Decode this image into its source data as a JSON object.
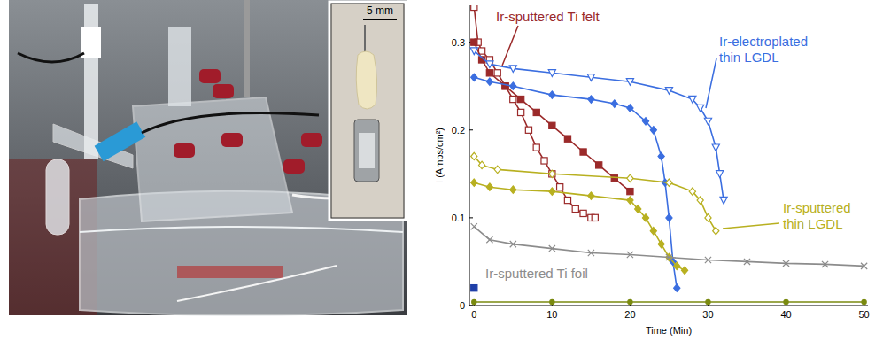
{
  "chart_data": {
    "type": "scatter",
    "x_label": "Time (Min)",
    "y_label": "I (Amps/cm²)",
    "xlim": [
      -0.6,
      50.5
    ],
    "ylim": [
      0,
      0.342
    ],
    "xticks": [
      0,
      10,
      20,
      30,
      40,
      50
    ],
    "yticks": [
      0,
      0.1,
      0.2,
      0.3
    ],
    "grid": false,
    "series": [
      {
        "name": "Ir-sputtered Ti felt",
        "color": "#9b2a2a",
        "marker": "square-open",
        "line_style": "solid",
        "x": [
          0,
          0.5,
          1,
          2,
          3,
          4,
          5,
          6,
          7,
          8,
          9,
          10,
          11,
          12,
          13,
          14,
          15,
          15.5
        ],
        "values": [
          0.34,
          0.3,
          0.29,
          0.28,
          0.265,
          0.25,
          0.235,
          0.22,
          0.2,
          0.18,
          0.165,
          0.15,
          0.135,
          0.12,
          0.11,
          0.105,
          0.1,
          0.1
        ]
      },
      {
        "color": "#9b2a2a",
        "marker": "square",
        "line_style": "solid",
        "x": [
          0,
          1,
          2,
          4,
          6,
          8,
          10,
          12,
          14,
          16,
          18,
          20
        ],
        "values": [
          0.3,
          0.28,
          0.265,
          0.25,
          0.235,
          0.22,
          0.205,
          0.19,
          0.175,
          0.16,
          0.145,
          0.13
        ]
      },
      {
        "name": "Ir-electroplated thin LGDL",
        "color": "#3b6ee0",
        "marker": "triangle-down-open",
        "line_style": "solid",
        "x": [
          0,
          2,
          5,
          10,
          15,
          20,
          25,
          28,
          29,
          30,
          31,
          31.5,
          32
        ],
        "values": [
          0.29,
          0.275,
          0.27,
          0.265,
          0.26,
          0.255,
          0.245,
          0.235,
          0.225,
          0.21,
          0.18,
          0.15,
          0.12
        ]
      },
      {
        "color": "#3b6ee0",
        "marker": "diamond",
        "line_style": "solid",
        "x": [
          0,
          2,
          5,
          10,
          15,
          18,
          20,
          22,
          23,
          24,
          24.5,
          25,
          25.5,
          26
        ],
        "values": [
          0.26,
          0.255,
          0.25,
          0.24,
          0.235,
          0.23,
          0.225,
          0.21,
          0.2,
          0.17,
          0.14,
          0.1,
          0.05,
          0.02
        ]
      },
      {
        "name": "Ir-sputtered thin LGDL",
        "color": "#b8b020",
        "marker": "diamond-open",
        "line_style": "solid",
        "x": [
          0,
          1,
          3,
          10,
          20,
          25,
          28,
          29,
          30,
          31
        ],
        "values": [
          0.17,
          0.16,
          0.155,
          0.15,
          0.145,
          0.14,
          0.13,
          0.12,
          0.1,
          0.085
        ]
      },
      {
        "color": "#b8b020",
        "marker": "diamond",
        "line_style": "solid",
        "x": [
          0,
          2,
          5,
          10,
          15,
          20,
          21,
          22,
          23,
          24,
          25,
          26,
          27
        ],
        "values": [
          0.14,
          0.135,
          0.132,
          0.13,
          0.125,
          0.12,
          0.11,
          0.1,
          0.085,
          0.07,
          0.055,
          0.045,
          0.04
        ]
      },
      {
        "name": "Ir-sputtered Ti foil",
        "color": "#8c8c8c",
        "marker": "x",
        "line_style": "solid",
        "x": [
          0,
          2,
          5,
          10,
          15,
          20,
          25,
          30,
          35,
          40,
          45,
          50
        ],
        "values": [
          0.09,
          0.075,
          0.07,
          0.065,
          0.06,
          0.058,
          0.055,
          0.052,
          0.05,
          0.048,
          0.047,
          0.045
        ]
      },
      {
        "color": "#7a8a10",
        "marker": "circle",
        "line_style": "solid",
        "x": [
          0,
          10,
          20,
          30,
          40,
          50
        ],
        "values": [
          0.004,
          0.004,
          0.004,
          0.004,
          0.004,
          0.004
        ]
      },
      {
        "color": "#1f3fa8",
        "marker": "square",
        "line_style": "solid",
        "x": [
          0
        ],
        "values": [
          0.02
        ]
      }
    ]
  },
  "photo": {
    "inset_scale_label": "5 mm"
  }
}
